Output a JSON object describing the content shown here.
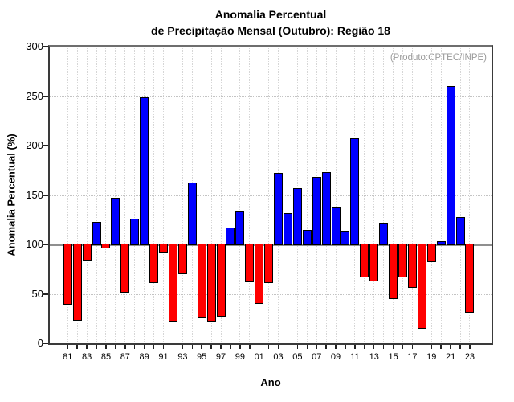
{
  "title": {
    "line1": "Anomalia Percentual",
    "line2": "de Precipitação Mensal (Outubro): Região 18"
  },
  "annotation": "(Produto:CPTEC/INPE)",
  "axis": {
    "ylabel": "Anomalia Percentual (%)",
    "xlabel": "Ano"
  },
  "chart_data": {
    "type": "bar",
    "title": "Anomalia Percentual de Precipitação Mensal (Outubro): Região 18",
    "xlabel": "Ano",
    "ylabel": "Anomalia Percentual (%)",
    "ylim": [
      0,
      300
    ],
    "yticks": [
      0,
      50,
      100,
      150,
      200,
      250,
      300
    ],
    "baseline": 100,
    "grid": true,
    "x_tick_labels": [
      "81",
      "83",
      "85",
      "87",
      "89",
      "91",
      "93",
      "95",
      "97",
      "99",
      "01",
      "03",
      "05",
      "07",
      "09",
      "11",
      "13",
      "15",
      "17",
      "19",
      "21",
      "23"
    ],
    "years": [
      1981,
      1982,
      1983,
      1984,
      1985,
      1986,
      1987,
      1988,
      1989,
      1990,
      1991,
      1992,
      1993,
      1994,
      1995,
      1996,
      1997,
      1998,
      1999,
      2000,
      2001,
      2002,
      2003,
      2004,
      2005,
      2006,
      2007,
      2008,
      2009,
      2010,
      2011,
      2012,
      2013,
      2014,
      2015,
      2016,
      2017,
      2018,
      2019,
      2020,
      2021,
      2022,
      2023
    ],
    "values": [
      39,
      23,
      83,
      123,
      96,
      147,
      51,
      126,
      249,
      61,
      91,
      22,
      70,
      163,
      26,
      22,
      27,
      117,
      133,
      62,
      40,
      61,
      172,
      132,
      157,
      115,
      168,
      173,
      137,
      114,
      207,
      67,
      63,
      122,
      45,
      67,
      56,
      15,
      82,
      103,
      260,
      128,
      31
    ],
    "colors": {
      "above_baseline": "#0000ff",
      "below_baseline": "#ff0000",
      "bar_outline": "#000000",
      "baseline_line": "#8f8f8f",
      "annotation_text": "#9a9a9a"
    },
    "legend": null
  }
}
